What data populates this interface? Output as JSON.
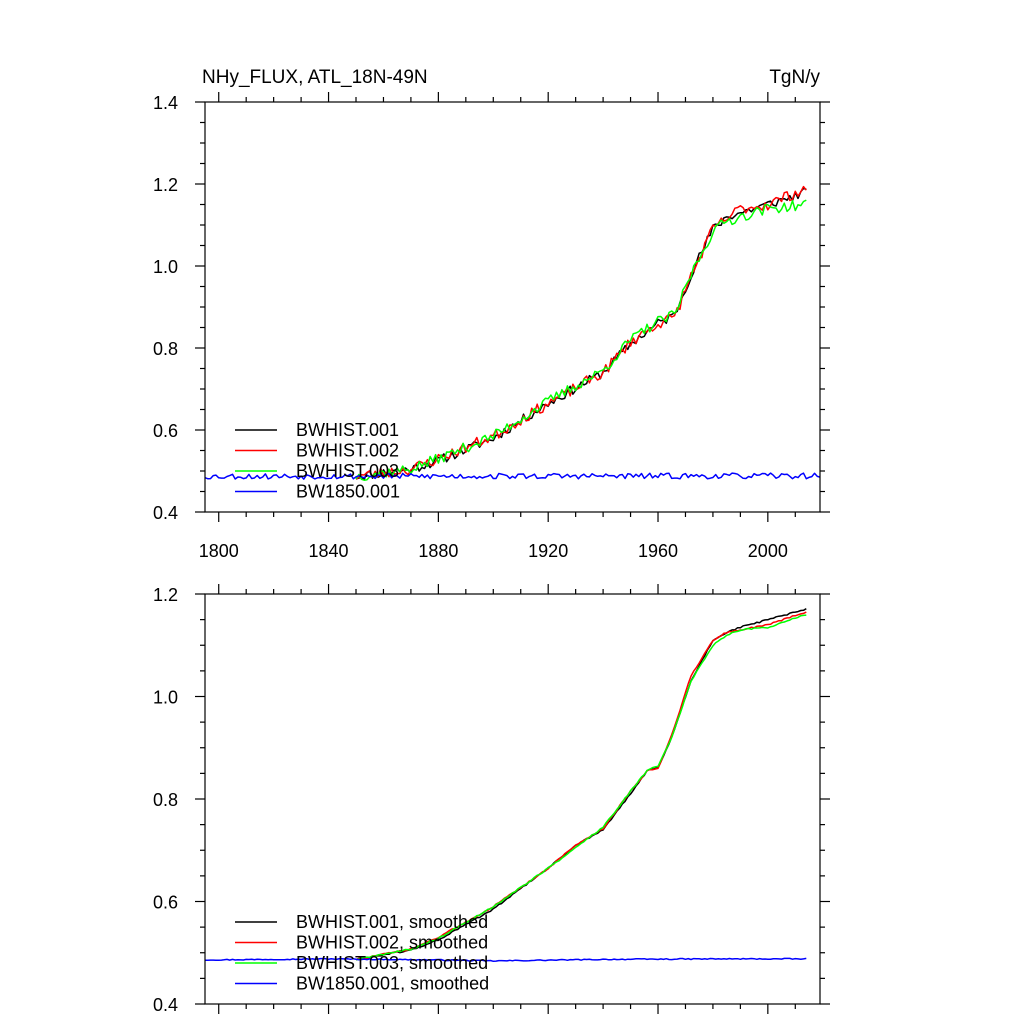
{
  "figure": {
    "title_left": "NHy_FLUX, ATL_18N-49N",
    "title_right": "TgN/y"
  },
  "chart_data": [
    {
      "type": "line",
      "panel": "top",
      "title": "NHy_FLUX, ATL_18N-49N",
      "units": "TgN/y",
      "xlim": [
        1795,
        2019
      ],
      "ylim": [
        0.4,
        1.4
      ],
      "xticks": [
        1800,
        1840,
        1880,
        1920,
        1960,
        2000
      ],
      "yticks": [
        0.4,
        0.6,
        0.8,
        1.0,
        1.2,
        1.4
      ],
      "xtick_labels": [
        "1800",
        "1840",
        "1880",
        "1920",
        "1960",
        "2000"
      ],
      "ytick_labels": [
        "0.4",
        "0.6",
        "0.8",
        "1.0",
        "1.2",
        "1.4"
      ],
      "legend_position": "bottom-left",
      "series": [
        {
          "name": "BWHIST.001",
          "color": "#000000",
          "x_start": 1850,
          "x_end": 2014,
          "noise": 0.012,
          "seed": 11,
          "anchors": [
            [
              1850,
              0.487
            ],
            [
              1870,
              0.505
            ],
            [
              1880,
              0.525
            ],
            [
              1900,
              0.58
            ],
            [
              1920,
              0.665
            ],
            [
              1940,
              0.74
            ],
            [
              1950,
              0.81
            ],
            [
              1960,
              0.86
            ],
            [
              1966,
              0.88
            ],
            [
              1972,
              0.98
            ],
            [
              1980,
              1.09
            ],
            [
              1985,
              1.12
            ],
            [
              1990,
              1.13
            ],
            [
              2000,
              1.15
            ],
            [
              2014,
              1.18
            ]
          ]
        },
        {
          "name": "BWHIST.002",
          "color": "#ff0000",
          "x_start": 1850,
          "x_end": 2014,
          "noise": 0.014,
          "seed": 23,
          "anchors": [
            [
              1850,
              0.487
            ],
            [
              1870,
              0.505
            ],
            [
              1880,
              0.53
            ],
            [
              1900,
              0.585
            ],
            [
              1920,
              0.665
            ],
            [
              1940,
              0.74
            ],
            [
              1950,
              0.815
            ],
            [
              1960,
              0.86
            ],
            [
              1966,
              0.875
            ],
            [
              1972,
              0.975
            ],
            [
              1980,
              1.09
            ],
            [
              1985,
              1.115
            ],
            [
              1990,
              1.14
            ],
            [
              2000,
              1.15
            ],
            [
              2014,
              1.19
            ]
          ]
        },
        {
          "name": "BWHIST.003",
          "color": "#00ff00",
          "x_start": 1850,
          "x_end": 2014,
          "noise": 0.013,
          "seed": 37,
          "anchors": [
            [
              1850,
              0.487
            ],
            [
              1870,
              0.505
            ],
            [
              1880,
              0.53
            ],
            [
              1900,
              0.585
            ],
            [
              1920,
              0.67
            ],
            [
              1940,
              0.745
            ],
            [
              1950,
              0.82
            ],
            [
              1960,
              0.865
            ],
            [
              1966,
              0.88
            ],
            [
              1972,
              0.98
            ],
            [
              1980,
              1.085
            ],
            [
              1985,
              1.11
            ],
            [
              1990,
              1.12
            ],
            [
              2000,
              1.14
            ],
            [
              2014,
              1.15
            ]
          ]
        },
        {
          "name": "BW1850.001",
          "color": "#0000ff",
          "x_start": 1795,
          "x_end": 2019,
          "noise": 0.007,
          "seed": 53,
          "anchors": [
            [
              1795,
              0.487
            ],
            [
              2019,
              0.488
            ]
          ]
        }
      ]
    },
    {
      "type": "line",
      "panel": "bottom",
      "xlim": [
        1795,
        2019
      ],
      "ylim": [
        0.4,
        1.2
      ],
      "xticks": [
        1800,
        1840,
        1880,
        1920,
        1960,
        2000
      ],
      "yticks": [
        0.4,
        0.6,
        0.8,
        1.0,
        1.2
      ],
      "ytick_labels": [
        "0.4",
        "0.6",
        "0.8",
        "1.0",
        "1.2"
      ],
      "legend_position": "bottom-left",
      "series": [
        {
          "name": "BWHIST.001, smoothed",
          "color": "#000000",
          "x_start": 1850,
          "x_end": 2014,
          "noise": 0.0015,
          "seed": 61,
          "anchors": [
            [
              1850,
              0.487
            ],
            [
              1870,
              0.505
            ],
            [
              1880,
              0.525
            ],
            [
              1900,
              0.585
            ],
            [
              1920,
              0.665
            ],
            [
              1930,
              0.71
            ],
            [
              1940,
              0.74
            ],
            [
              1950,
              0.81
            ],
            [
              1956,
              0.855
            ],
            [
              1960,
              0.86
            ],
            [
              1965,
              0.92
            ],
            [
              1972,
              1.03
            ],
            [
              1980,
              1.11
            ],
            [
              1985,
              1.125
            ],
            [
              1990,
              1.135
            ],
            [
              2000,
              1.15
            ],
            [
              2014,
              1.17
            ]
          ]
        },
        {
          "name": "BWHIST.002, smoothed",
          "color": "#ff0000",
          "x_start": 1850,
          "x_end": 2014,
          "noise": 0.0015,
          "seed": 73,
          "anchors": [
            [
              1850,
              0.487
            ],
            [
              1870,
              0.507
            ],
            [
              1880,
              0.53
            ],
            [
              1900,
              0.59
            ],
            [
              1920,
              0.665
            ],
            [
              1930,
              0.71
            ],
            [
              1940,
              0.742
            ],
            [
              1950,
              0.815
            ],
            [
              1956,
              0.855
            ],
            [
              1960,
              0.86
            ],
            [
              1965,
              0.925
            ],
            [
              1972,
              1.04
            ],
            [
              1980,
              1.11
            ],
            [
              1985,
              1.125
            ],
            [
              1990,
              1.13
            ],
            [
              2000,
              1.14
            ],
            [
              2014,
              1.165
            ]
          ]
        },
        {
          "name": "BWHIST.003, smoothed",
          "color": "#00ff00",
          "x_start": 1850,
          "x_end": 2014,
          "noise": 0.0015,
          "seed": 89,
          "anchors": [
            [
              1850,
              0.487
            ],
            [
              1870,
              0.507
            ],
            [
              1880,
              0.528
            ],
            [
              1900,
              0.59
            ],
            [
              1920,
              0.665
            ],
            [
              1930,
              0.705
            ],
            [
              1940,
              0.745
            ],
            [
              1950,
              0.815
            ],
            [
              1956,
              0.855
            ],
            [
              1960,
              0.865
            ],
            [
              1965,
              0.92
            ],
            [
              1972,
              1.03
            ],
            [
              1980,
              1.1
            ],
            [
              1985,
              1.12
            ],
            [
              1990,
              1.13
            ],
            [
              2000,
              1.135
            ],
            [
              2014,
              1.16
            ]
          ]
        },
        {
          "name": "BW1850.001, smoothed",
          "color": "#0000ff",
          "x_start": 1795,
          "x_end": 2014,
          "noise": 0.001,
          "seed": 97,
          "anchors": [
            [
              1795,
              0.486
            ],
            [
              1840,
              0.488
            ],
            [
              1880,
              0.486
            ],
            [
              1900,
              0.484
            ],
            [
              1940,
              0.487
            ],
            [
              1980,
              0.488
            ],
            [
              2014,
              0.488
            ]
          ]
        }
      ]
    }
  ]
}
